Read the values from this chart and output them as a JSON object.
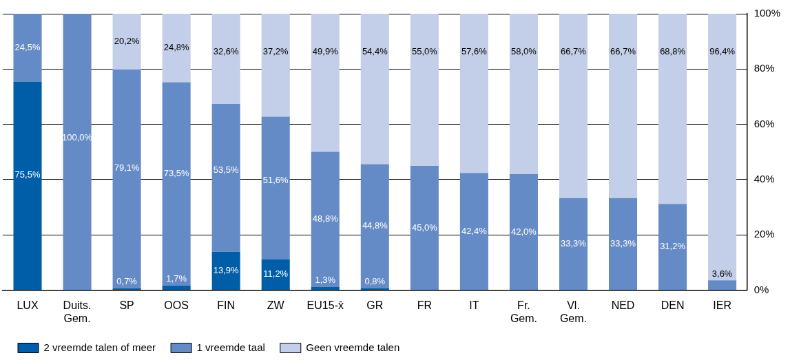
{
  "chart_data": {
    "type": "bar",
    "stacked": true,
    "categories": [
      "LUX",
      "Duits. Gem.",
      "SP",
      "OOS",
      "FIN",
      "ZW",
      "EU15-x̄",
      "GR",
      "FR",
      "IT",
      "Fr. Gem.",
      "Vl. Gem.",
      "NED",
      "DEN",
      "IER"
    ],
    "series": [
      {
        "name": "2 vreemde talen of meer",
        "color": "#005ea8",
        "values": [
          75.5,
          0,
          0.7,
          1.7,
          13.9,
          11.2,
          1.3,
          0.8,
          0,
          0,
          0,
          0,
          0,
          0,
          0
        ],
        "value_labels": [
          "75,5%",
          null,
          "0,7%",
          "1,7%",
          "13,9%",
          "11,2%",
          "1,3%",
          "0,8%",
          null,
          null,
          null,
          null,
          null,
          null,
          null
        ]
      },
      {
        "name": "1 vreemde taal",
        "color": "#658bc6",
        "values": [
          24.5,
          100,
          79.1,
          73.5,
          53.5,
          51.6,
          48.8,
          44.8,
          45.0,
          42.4,
          42.0,
          33.3,
          33.3,
          31.2,
          3.6
        ],
        "value_labels": [
          "24,5%",
          "100,0%",
          "79,1%",
          "73,5%",
          "53,5%",
          "51,6%",
          "48,8%",
          "44,8%",
          "45,0%",
          "42,4%",
          "42,0%",
          "33,3%",
          "33,3%",
          "31,2%",
          "3,6%"
        ]
      },
      {
        "name": "Geen vreemde talen",
        "color": "#c3cee8",
        "values": [
          0,
          0,
          20.2,
          24.8,
          32.6,
          37.2,
          49.9,
          54.4,
          55.0,
          57.6,
          58.0,
          66.7,
          66.7,
          68.8,
          96.4
        ],
        "value_labels": [
          null,
          null,
          "20,2%",
          "24,8%",
          "32,6%",
          "37,2%",
          "49,9%",
          "54,4%",
          "55,0%",
          "57,6%",
          "58,0%",
          "66,7%",
          "66,7%",
          "68,8%",
          "96,4%"
        ]
      }
    ],
    "ylim": [
      0,
      100
    ],
    "yticks": [
      {
        "value": 0,
        "label": "0%"
      },
      {
        "value": 20,
        "label": "20%"
      },
      {
        "value": 40,
        "label": "40%"
      },
      {
        "value": 60,
        "label": "60%"
      },
      {
        "value": 80,
        "label": "80%"
      },
      {
        "value": 100,
        "label": "100%"
      }
    ],
    "grid": "y",
    "legend": "bottom left"
  }
}
